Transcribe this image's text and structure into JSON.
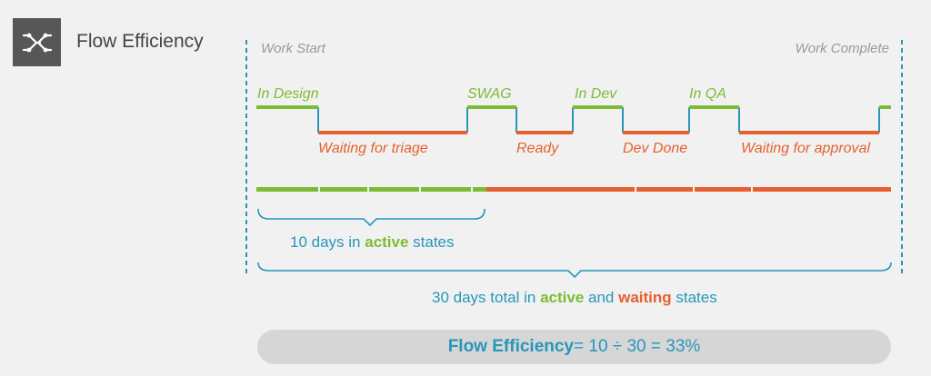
{
  "header": {
    "title": "Flow Efficiency",
    "icon": "flow-network-icon"
  },
  "timeline": {
    "start_label": "Work Start",
    "end_label": "Work Complete",
    "active_states": [
      "In Design",
      "SWAG",
      "In Dev",
      "In QA"
    ],
    "waiting_states": [
      "Waiting for triage",
      "Ready",
      "Dev Done",
      "Waiting for approval"
    ]
  },
  "summary": {
    "active_prefix": "10 days in ",
    "active_word": "active",
    "active_suffix": " states",
    "total_prefix": "30 days total in ",
    "total_active_word": "active",
    "total_and": " and ",
    "total_waiting_word": "waiting",
    "total_suffix": " states"
  },
  "formula": {
    "label": "Flow Efficiency",
    "expression": " = 10 ÷ 30 = 33%"
  },
  "colors": {
    "active": "#7dbb35",
    "waiting": "#e5602e",
    "accent": "#2796bb",
    "neutral": "#9a9a9a"
  }
}
